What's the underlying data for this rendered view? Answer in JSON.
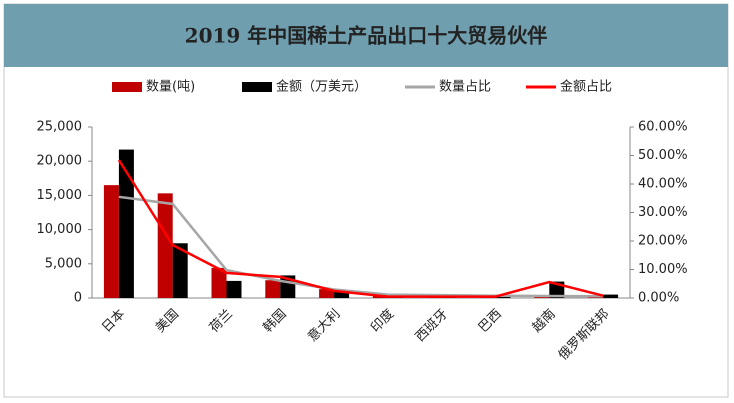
{
  "chart_data": {
    "type": "bar-line",
    "title": "2019 年中国稀土产品出口十大贸易伙伴",
    "categories": [
      "日本",
      "美国",
      "荷兰",
      "韩国",
      "意大利",
      "印度",
      "西班牙",
      "巴西",
      "越南",
      "俄罗斯联邦"
    ],
    "series": [
      {
        "name": "数量(吨)",
        "type": "bar",
        "color": "#c00000",
        "values": [
          16500,
          15300,
          4400,
          2600,
          1300,
          600,
          400,
          300,
          300,
          250
        ]
      },
      {
        "name": "金额（万美元）",
        "type": "bar",
        "color": "#000000",
        "values": [
          21700,
          8000,
          2500,
          3300,
          900,
          200,
          200,
          200,
          2400,
          500
        ]
      },
      {
        "name": "数量占比",
        "type": "line",
        "axis": "y2",
        "color": "#a6a6a6",
        "values": [
          35.5,
          33,
          9.8,
          6,
          3,
          1.2,
          1,
          0.8,
          0.7,
          0.6
        ]
      },
      {
        "name": "金额占比",
        "type": "line",
        "axis": "y2",
        "color": "#ff0000",
        "values": [
          48.4,
          18.6,
          8.8,
          7.4,
          2.5,
          0.5,
          0.5,
          0.5,
          5.6,
          0.8
        ]
      }
    ],
    "ylim": [
      0,
      25000
    ],
    "yticks": [
      {
        "value": 0,
        "label": "0"
      },
      {
        "value": 5000,
        "label": "5,000"
      },
      {
        "value": 10000,
        "label": "10,000"
      },
      {
        "value": 15000,
        "label": "15,000"
      },
      {
        "value": 20000,
        "label": "20,000"
      },
      {
        "value": 25000,
        "label": "25,000"
      }
    ],
    "y2lim": [
      0,
      60
    ],
    "y2ticks": [
      {
        "value": 0,
        "label": "0.00%"
      },
      {
        "value": 10,
        "label": "10.00%"
      },
      {
        "value": 20,
        "label": "20.00%"
      },
      {
        "value": 30,
        "label": "30.00%"
      },
      {
        "value": 40,
        "label": "40.00%"
      },
      {
        "value": 50,
        "label": "50.00%"
      },
      {
        "value": 60,
        "label": "60.00%"
      }
    ],
    "legend": "top",
    "grid": false
  }
}
